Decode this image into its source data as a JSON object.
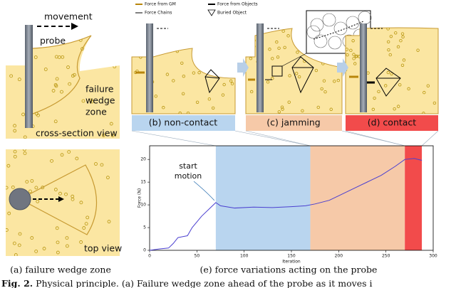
{
  "panel_a": {
    "movement": "movement",
    "probe": "probe",
    "wedge_label": [
      "failure",
      "wedge",
      "zone"
    ],
    "cross_section": "cross-section view",
    "top_view": "top view",
    "caption": "(a) failure wedge zone"
  },
  "legend": [
    "Force from GM",
    "Force from Objects",
    "Force Chains",
    "Buried Object"
  ],
  "chart_data": {
    "type": "line",
    "caption": "(e) force variations acting on the probe",
    "x_label": "Iteration",
    "y_label": "Force (N)",
    "annotation": [
      "start",
      "motion"
    ],
    "x": [
      0,
      10,
      20,
      25,
      30,
      40,
      45,
      55,
      65,
      70,
      75,
      90,
      110,
      130,
      150,
      165,
      175,
      190,
      200,
      215,
      230,
      245,
      260,
      270,
      280,
      288
    ],
    "series": [
      {
        "name": "Force",
        "color": "#4a3fd0",
        "values": [
          0,
          0.3,
          0.5,
          1.5,
          2.8,
          3.2,
          5,
          7.5,
          9.5,
          10.5,
          9.8,
          9.3,
          9.5,
          9.4,
          9.6,
          9.8,
          10.2,
          11,
          12,
          13.5,
          15,
          16.5,
          18.5,
          20,
          20.2,
          19.8
        ]
      }
    ],
    "regions": [
      {
        "label": "(b) non-contact",
        "start": 70,
        "end": 170,
        "color": "#b9d5ef"
      },
      {
        "label": "(c) jamming",
        "start": 170,
        "end": 270,
        "color": "#f6c9a8"
      },
      {
        "label": "(d) contact",
        "start": 270,
        "end": 288,
        "color": "#f24b4b"
      }
    ],
    "xlim": [
      0,
      300
    ],
    "ylim": [
      0,
      23
    ],
    "xticks": [
      0,
      50,
      100,
      150,
      200,
      250,
      300
    ],
    "yticks": [
      0,
      5,
      10,
      15,
      20
    ]
  },
  "caption": {
    "label": "Fig. 2.",
    "text": "Physical principle. (a) Failure wedge zone ahead of the probe as it moves i"
  }
}
